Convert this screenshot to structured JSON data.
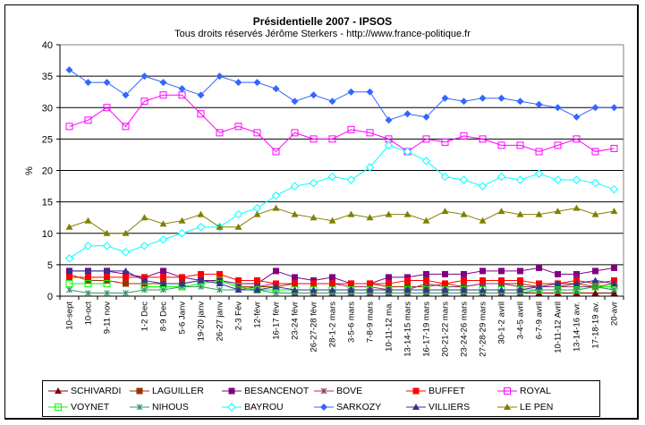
{
  "chart_data": {
    "type": "line",
    "title": "Présidentielle 2007 - IPSOS",
    "subtitle": "Tous droits réservés Jérôme Sterkers - http://www.france-politique.fr",
    "xlabel": "",
    "ylabel": "%",
    "ylim": [
      0,
      40
    ],
    "yticks": [
      0,
      5,
      10,
      15,
      20,
      25,
      30,
      35,
      40
    ],
    "grid": true,
    "legend_position": "bottom",
    "categories": [
      "10-sept",
      "10-oct",
      "9-11 nov",
      "",
      "1-2 Dec",
      "8-9 Dec",
      "5-6 Janv",
      "19-20 janv",
      "26-27 janv",
      "2-3 Fév",
      "12-févr",
      "16-17 févr",
      "23-24 févr",
      "26-27-28 févr",
      "28-1-2 mars",
      "3-5-6 mars",
      "7-8-9 mars",
      "10-11-12 ma.",
      "13-14-15 mars",
      "16-17-19 mars",
      "20-21-22 mars",
      "23-24-26 mars",
      "27-28-29 mars",
      "30-1-2 avril",
      "3-4-5 avril",
      "6-7-9 avril",
      "10-11-12 Avril",
      "13-14-16 avr.",
      "17-18-19 av.",
      "20-avr"
    ],
    "series": [
      {
        "name": "SCHIVARDI",
        "color": "#800000",
        "marker": "triangle",
        "values": [
          null,
          null,
          null,
          null,
          null,
          null,
          null,
          null,
          null,
          null,
          null,
          null,
          0.5,
          0.5,
          0.5,
          0.5,
          0.5,
          0.5,
          0.5,
          0.5,
          0.5,
          0.5,
          0.5,
          0.5,
          0.5,
          0.5,
          0.5,
          0.5,
          0.5,
          0.5
        ]
      },
      {
        "name": "LAGUILLER",
        "color": "#993300",
        "marker": "square",
        "values": [
          3.5,
          2.5,
          2.5,
          2,
          2,
          2,
          2,
          2.5,
          2.5,
          1.5,
          1.5,
          1.5,
          2,
          2,
          2,
          2,
          2,
          1.5,
          1.5,
          1.5,
          2,
          1.5,
          2,
          2,
          2,
          1.5,
          1.5,
          2,
          1.5,
          2
        ]
      },
      {
        "name": "BESANCENOT",
        "color": "#800080",
        "marker": "square",
        "values": [
          4,
          4,
          4,
          3.5,
          3,
          4,
          3,
          2.5,
          2.5,
          2,
          2,
          4,
          3,
          2.5,
          3,
          2,
          2,
          3,
          3,
          3.5,
          3.5,
          3.5,
          4,
          4,
          4,
          4.5,
          3.5,
          3.5,
          4,
          4.5
        ]
      },
      {
        "name": "BOVE",
        "color": "#993366",
        "marker": "star",
        "values": [
          null,
          null,
          null,
          null,
          null,
          null,
          null,
          null,
          null,
          1,
          1.5,
          2,
          2,
          2,
          2,
          1.5,
          1.5,
          1,
          1,
          2,
          1.5,
          1.5,
          2,
          2,
          1.5,
          1.5,
          1.5,
          1.5,
          1.5,
          1
        ]
      },
      {
        "name": "BUFFET",
        "color": "#ff0000",
        "marker": "square",
        "values": [
          3,
          3,
          3,
          3,
          3,
          3,
          3,
          3.5,
          3.5,
          2.5,
          2.5,
          2,
          2,
          2,
          2,
          2,
          2,
          2,
          2.5,
          2.5,
          2,
          2.5,
          2.5,
          2.5,
          2.5,
          2,
          2,
          2.5,
          2,
          2.5
        ]
      },
      {
        "name": "ROYAL",
        "color": "#ff00ff",
        "marker": "square-open",
        "values": [
          27,
          28,
          30,
          27,
          31,
          32,
          32,
          29,
          26,
          27,
          26,
          23,
          26,
          25,
          25,
          26.5,
          26,
          25,
          23,
          25,
          24.5,
          25.5,
          25,
          24,
          24,
          23,
          24,
          25,
          23,
          23.5
        ]
      },
      {
        "name": "VOYNET",
        "color": "#00ff00",
        "marker": "square-open",
        "values": [
          2,
          2,
          2,
          null,
          1.5,
          1.5,
          1.5,
          2,
          2.5,
          1.5,
          1,
          1,
          1,
          1,
          1,
          1,
          1,
          1,
          1,
          1,
          1,
          1,
          1,
          1,
          1,
          1,
          1,
          1,
          1.5,
          1.5
        ]
      },
      {
        "name": "NIHOUS",
        "color": "#339966",
        "marker": "star",
        "values": [
          1,
          0.5,
          0.5,
          0.5,
          1,
          1,
          1.5,
          1.5,
          1,
          1,
          1,
          0.5,
          0.5,
          0.5,
          0.5,
          0.5,
          0.5,
          0.5,
          0.5,
          0.5,
          0.5,
          0.5,
          0.5,
          0.5,
          0.5,
          1,
          1,
          1,
          1.5,
          1
        ]
      },
      {
        "name": "BAYROU",
        "color": "#00ffff",
        "marker": "diamond-open",
        "values": [
          6,
          8,
          8,
          7,
          8,
          9,
          10,
          11,
          11,
          13,
          14,
          16,
          17.5,
          18,
          19,
          18.5,
          20.5,
          24,
          23,
          21.5,
          19,
          18.5,
          17.5,
          19,
          18.5,
          19.5,
          18.5,
          18.5,
          18,
          17
        ]
      },
      {
        "name": "SARKOZY",
        "color": "#3366ff",
        "marker": "diamond",
        "values": [
          36,
          34,
          34,
          32,
          35,
          34,
          33,
          32,
          35,
          34,
          34,
          33,
          31,
          32,
          31,
          32.5,
          32.5,
          28,
          29,
          28.5,
          31.5,
          31,
          31.5,
          31.5,
          31,
          30.5,
          30,
          28.5,
          30,
          30
        ]
      },
      {
        "name": "VILLIERS",
        "color": "#333399",
        "marker": "triangle",
        "values": [
          4,
          4,
          4,
          4,
          2.5,
          2,
          2,
          2.5,
          2,
          1,
          1,
          1.5,
          1,
          1,
          1,
          1,
          1,
          1,
          1,
          1,
          1,
          1,
          1,
          1,
          1,
          1.5,
          2,
          2,
          2.5,
          2
        ]
      },
      {
        "name": "LE PEN",
        "color": "#808000",
        "marker": "triangle",
        "values": [
          11,
          12,
          10,
          10,
          12.5,
          11.5,
          12,
          13,
          11,
          11,
          13,
          14,
          13,
          12.5,
          12,
          13,
          12.5,
          13,
          13,
          12,
          13.5,
          13,
          12,
          13.5,
          13,
          13,
          13.5,
          14,
          13,
          13.5
        ]
      }
    ]
  }
}
